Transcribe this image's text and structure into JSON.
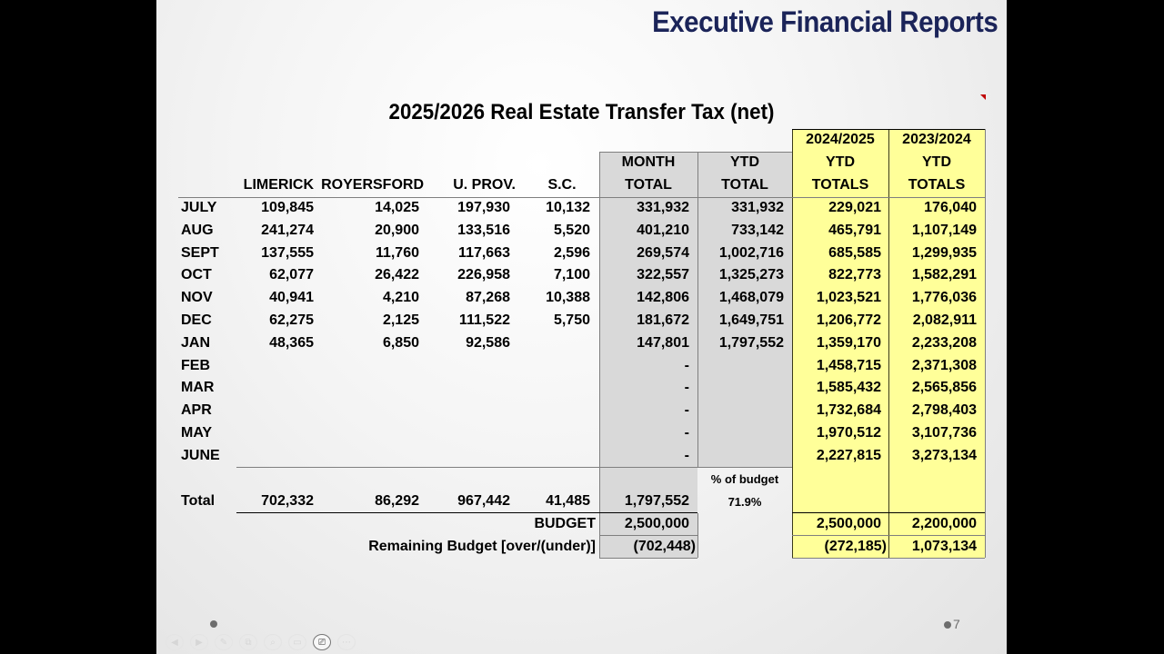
{
  "slide": {
    "title": "Executive Financial Reports",
    "table_title": "2025/2026 Real Estate Transfer Tax (net)",
    "page_number": "7",
    "colors": {
      "title": "#1b2459",
      "grey_fill": "#d9d9d9",
      "yellow_fill": "#ffff99",
      "mark": "#c00000"
    }
  },
  "table": {
    "headers": {
      "month": "",
      "limerick": "LIMERICK",
      "royersford": "ROYERSFORD",
      "uprov": "U. PROV.",
      "sc": "S.C.",
      "month_total": [
        "MONTH",
        "TOTAL"
      ],
      "ytd_total": [
        "YTD",
        "TOTAL"
      ],
      "ytd_2425": [
        "2024/2025",
        "YTD",
        "TOTALS"
      ],
      "ytd_2324": [
        "2023/2024",
        "YTD",
        "TOTALS"
      ]
    },
    "rows": [
      {
        "month": "JULY",
        "limerick": "109,845",
        "royersford": "14,025",
        "uprov": "197,930",
        "sc": "10,132",
        "month_total": "331,932",
        "ytd_total": "331,932",
        "ytd_2425": "229,021",
        "ytd_2324": "176,040"
      },
      {
        "month": "AUG",
        "limerick": "241,274",
        "royersford": "20,900",
        "uprov": "133,516",
        "sc": "5,520",
        "month_total": "401,210",
        "ytd_total": "733,142",
        "ytd_2425": "465,791",
        "ytd_2324": "1,107,149"
      },
      {
        "month": "SEPT",
        "limerick": "137,555",
        "royersford": "11,760",
        "uprov": "117,663",
        "sc": "2,596",
        "month_total": "269,574",
        "ytd_total": "1,002,716",
        "ytd_2425": "685,585",
        "ytd_2324": "1,299,935"
      },
      {
        "month": "OCT",
        "limerick": "62,077",
        "royersford": "26,422",
        "uprov": "226,958",
        "sc": "7,100",
        "month_total": "322,557",
        "ytd_total": "1,325,273",
        "ytd_2425": "822,773",
        "ytd_2324": "1,582,291"
      },
      {
        "month": "NOV",
        "limerick": "40,941",
        "royersford": "4,210",
        "uprov": "87,268",
        "sc": "10,388",
        "month_total": "142,806",
        "ytd_total": "1,468,079",
        "ytd_2425": "1,023,521",
        "ytd_2324": "1,776,036"
      },
      {
        "month": "DEC",
        "limerick": "62,275",
        "royersford": "2,125",
        "uprov": "111,522",
        "sc": "5,750",
        "month_total": "181,672",
        "ytd_total": "1,649,751",
        "ytd_2425": "1,206,772",
        "ytd_2324": "2,082,911"
      },
      {
        "month": "JAN",
        "limerick": "48,365",
        "royersford": "6,850",
        "uprov": "92,586",
        "sc": "",
        "month_total": "147,801",
        "ytd_total": "1,797,552",
        "ytd_2425": "1,359,170",
        "ytd_2324": "2,233,208"
      },
      {
        "month": "FEB",
        "limerick": "",
        "royersford": "",
        "uprov": "",
        "sc": "",
        "month_total": "-",
        "ytd_total": "",
        "ytd_2425": "1,458,715",
        "ytd_2324": "2,371,308"
      },
      {
        "month": "MAR",
        "limerick": "",
        "royersford": "",
        "uprov": "",
        "sc": "",
        "month_total": "-",
        "ytd_total": "",
        "ytd_2425": "1,585,432",
        "ytd_2324": "2,565,856"
      },
      {
        "month": "APR",
        "limerick": "",
        "royersford": "",
        "uprov": "",
        "sc": "",
        "month_total": "-",
        "ytd_total": "",
        "ytd_2425": "1,732,684",
        "ytd_2324": "2,798,403"
      },
      {
        "month": "MAY",
        "limerick": "",
        "royersford": "",
        "uprov": "",
        "sc": "",
        "month_total": "-",
        "ytd_total": "",
        "ytd_2425": "1,970,512",
        "ytd_2324": "3,107,736"
      },
      {
        "month": "JUNE",
        "limerick": "",
        "royersford": "",
        "uprov": "",
        "sc": "",
        "month_total": "-",
        "ytd_total": "",
        "ytd_2425": "2,227,815",
        "ytd_2324": "3,273,134"
      }
    ],
    "percent_of_budget": {
      "label": "% of budget",
      "value": "71.9%"
    },
    "total": {
      "label": "Total",
      "limerick": "702,332",
      "royersford": "86,292",
      "uprov": "967,442",
      "sc": "41,485",
      "month_total": "1,797,552"
    },
    "budget": {
      "label": "BUDGET",
      "month_total": "2,500,000",
      "ytd_2425": "2,500,000",
      "ytd_2324": "2,200,000"
    },
    "remaining": {
      "label": "Remaining Budget [over/(under)]",
      "month_total": "(702,448)",
      "ytd_2425": "(272,185)",
      "ytd_2324": "1,073,134"
    }
  },
  "player_toolbar": {
    "buttons": [
      "previous",
      "next",
      "pen",
      "copy",
      "zoom",
      "subtitles",
      "camera",
      "more"
    ]
  }
}
